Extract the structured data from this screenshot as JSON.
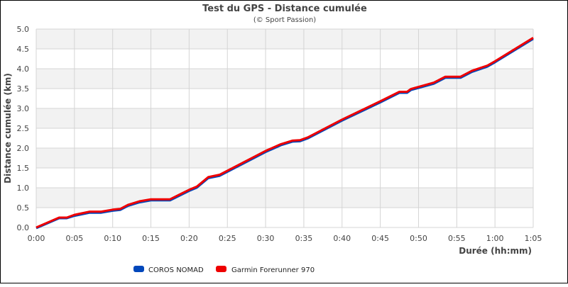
{
  "chart_data": {
    "type": "line",
    "title": "Test du GPS - Distance cumulée",
    "subtitle": "(© Sport Passion)",
    "xlabel": "Durée (hh:mm)",
    "ylabel": "Distance cumulée (km)",
    "xlim": [
      0,
      65
    ],
    "ylim": [
      0,
      5
    ],
    "x_unit": "minutes",
    "x_tick_labels": [
      "0:00",
      "0:05",
      "0:10",
      "0:15",
      "0:20",
      "0:25",
      "0:30",
      "0:35",
      "0:40",
      "0:45",
      "0:50",
      "0:55",
      "1:00",
      "1:05"
    ],
    "y_tick_labels": [
      "0.0",
      "0.5",
      "1.0",
      "1.5",
      "2.0",
      "2.5",
      "3.0",
      "3.5",
      "4.0",
      "4.5",
      "5.0"
    ],
    "grid": true,
    "legend_position": "bottom-left",
    "x": [
      0,
      3,
      4,
      5,
      7,
      8.5,
      10,
      11,
      12,
      13.5,
      15,
      17.5,
      20,
      21,
      22.5,
      24,
      30,
      32,
      33.5,
      34.5,
      35.5,
      40,
      45,
      47.5,
      48.5,
      49,
      52,
      53.5,
      55.5,
      57,
      59,
      60,
      65
    ],
    "series": [
      {
        "name": "COROS NOMAD",
        "color": "#0047bb",
        "values": [
          0,
          0.25,
          0.25,
          0.31,
          0.39,
          0.39,
          0.44,
          0.46,
          0.56,
          0.65,
          0.7,
          0.7,
          0.94,
          1.02,
          1.26,
          1.32,
          1.92,
          2.09,
          2.18,
          2.19,
          2.26,
          2.71,
          3.17,
          3.41,
          3.41,
          3.48,
          3.64,
          3.79,
          3.79,
          3.94,
          4.07,
          4.18,
          4.77
        ]
      },
      {
        "name": "Garmin Forerunner 970",
        "color": "#ee0000",
        "values": [
          0,
          0.25,
          0.25,
          0.32,
          0.4,
          0.4,
          0.45,
          0.47,
          0.57,
          0.66,
          0.71,
          0.71,
          0.95,
          1.03,
          1.27,
          1.33,
          1.93,
          2.1,
          2.19,
          2.2,
          2.27,
          2.72,
          3.18,
          3.42,
          3.42,
          3.49,
          3.65,
          3.8,
          3.8,
          3.95,
          4.08,
          4.19,
          4.78
        ]
      }
    ]
  },
  "colors": {
    "band": "#f2f2f2",
    "grid": "#d4d4d4",
    "text": "#444444"
  }
}
